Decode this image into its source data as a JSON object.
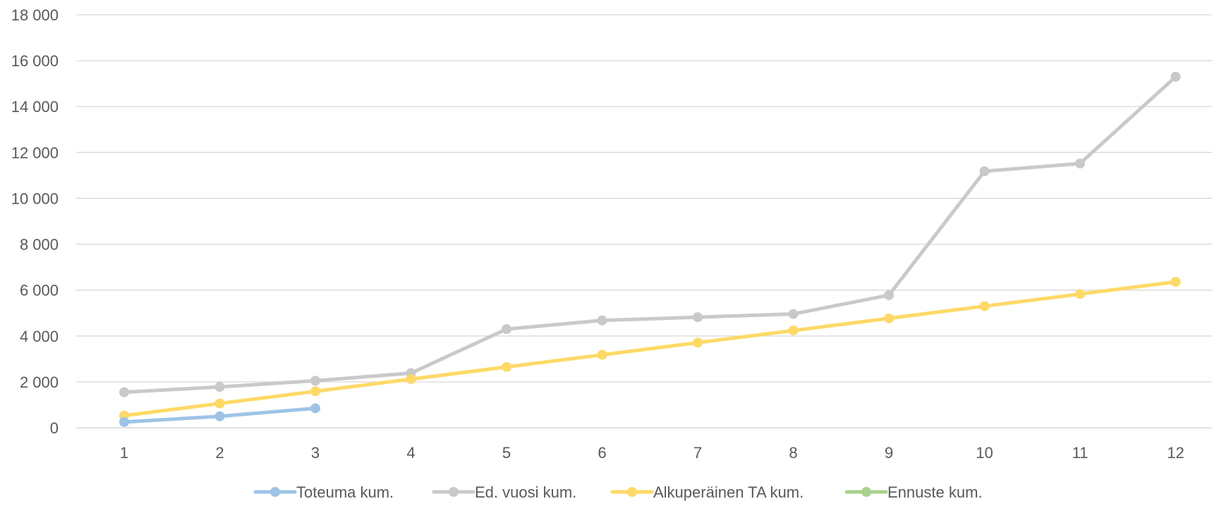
{
  "chart_data": {
    "type": "line",
    "title": "",
    "xlabel": "",
    "ylabel": "",
    "categories": [
      "1",
      "2",
      "3",
      "4",
      "5",
      "6",
      "7",
      "8",
      "9",
      "10",
      "11",
      "12"
    ],
    "y_ticks": [
      "0",
      "2 000",
      "4 000",
      "6 000",
      "8 000",
      "10 000",
      "12 000",
      "14 000",
      "16 000",
      "18 000"
    ],
    "ylim": [
      0,
      18000
    ],
    "grid": true,
    "legend_position": "bottom",
    "series": [
      {
        "name": "Toteuma kum.",
        "color": "#9dc3e6",
        "values": [
          250,
          500,
          850,
          null,
          null,
          null,
          null,
          null,
          null,
          null,
          null,
          null
        ]
      },
      {
        "name": "Ed. vuosi kum.",
        "color": "#c9c9c9",
        "values": [
          1550,
          1780,
          2050,
          2380,
          4300,
          4680,
          4820,
          4960,
          5780,
          11180,
          11520,
          15300
        ]
      },
      {
        "name": "Alkuperäinen TA kum.",
        "color": "#ffd966",
        "values": [
          530,
          1060,
          1590,
          2120,
          2650,
          3180,
          3710,
          4240,
          4770,
          5300,
          5830,
          6360
        ]
      },
      {
        "name": "Ennuste kum.",
        "color": "#a9d18e",
        "values": [
          null,
          null,
          null,
          null,
          null,
          null,
          null,
          null,
          null,
          null,
          null,
          null
        ]
      }
    ]
  }
}
